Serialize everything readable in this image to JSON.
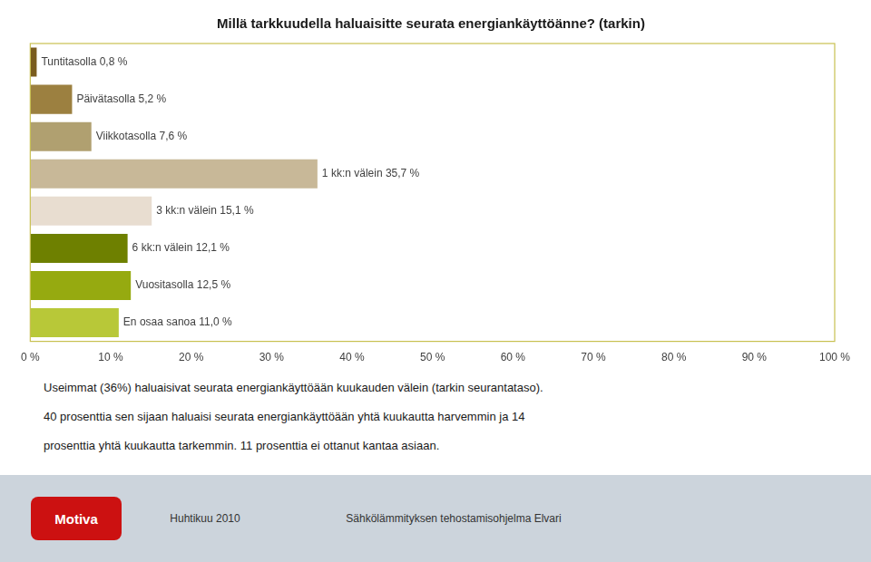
{
  "chart_data": {
    "type": "bar",
    "orientation": "horizontal",
    "title": "Millä tarkkuudella haluaisitte seurata energiankäyttöänne? (tarkin)",
    "categories": [
      "Tuntitasolla 0,8 %",
      "Päivätasolla 5,2 %",
      "Viikkotasolla 7,6 %",
      "1 kk:n välein 35,7 %",
      "3 kk:n välein 15,1 %",
      "6 kk:n välein 12,1 %",
      "Vuositasolla 12,5 %",
      "En osaa sanoa 11,0 %"
    ],
    "values": [
      0.8,
      5.2,
      7.6,
      35.7,
      15.1,
      12.1,
      12.5,
      11.0
    ],
    "colors": [
      "#7a5c1e",
      "#9c8040",
      "#b0a070",
      "#c8b898",
      "#e8ddd0",
      "#6e8000",
      "#96aa10",
      "#b8c838"
    ],
    "xlim": [
      0,
      100
    ],
    "xticks": [
      {
        "value": 0,
        "label": "0 %"
      },
      {
        "value": 10,
        "label": "10 %"
      },
      {
        "value": 20,
        "label": "20 %"
      },
      {
        "value": 30,
        "label": "30 %"
      },
      {
        "value": 40,
        "label": "40 %"
      },
      {
        "value": 50,
        "label": "50 %"
      },
      {
        "value": 60,
        "label": "60 %"
      },
      {
        "value": 70,
        "label": "70 %"
      },
      {
        "value": 80,
        "label": "80 %"
      },
      {
        "value": 90,
        "label": "90 %"
      },
      {
        "value": 100,
        "label": "100 %"
      }
    ],
    "grid": false,
    "tick_labels": "x",
    "annotations": [
      "Useimmat (36%) haluaisivat seurata energiankäyttöään kuukauden välein (tarkin seurantataso).",
      "40 prosenttia sen sijaan haluaisi seurata energiankäyttöään yhtä kuukautta harvemmin ja 14",
      "prosenttia yhtä kuukautta tarkemmin. 11 prosenttia ei ottanut kantaa asiaan.",
      "Huhtikuu 2010",
      "Sähkölämmityksen tehostamisohjelma Elvari",
      "Motiva"
    ]
  }
}
